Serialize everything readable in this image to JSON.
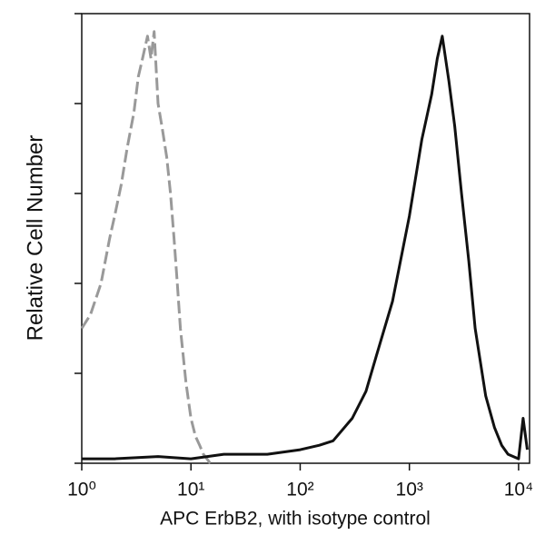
{
  "chart_data": {
    "type": "line",
    "x_label": "APC ErbB2, with isotype control",
    "y_label": "Relative Cell Number",
    "log_x": true,
    "xlim": [
      1,
      12600
    ],
    "xticks": [
      {
        "value": 1,
        "label": "10⁰"
      },
      {
        "value": 10,
        "label": "10¹"
      },
      {
        "value": 100,
        "label": "10²"
      },
      {
        "value": 1000,
        "label": "10³"
      },
      {
        "value": 10000,
        "label": "10⁴"
      }
    ],
    "ylim": [
      0,
      100
    ],
    "yticks": [
      0,
      20,
      40,
      60,
      80,
      100
    ],
    "series": [
      {
        "color": "#999999",
        "dashed": true,
        "x": [
          1,
          1.2,
          1.5,
          1.8,
          2,
          2.3,
          2.6,
          3,
          3.3,
          3.6,
          4,
          4.3,
          4.6,
          5,
          5.5,
          6,
          6.5,
          7,
          7.5,
          8,
          9,
          10,
          11,
          12,
          13,
          14,
          15
        ],
        "values": [
          30,
          33,
          40,
          50,
          55,
          62,
          70,
          78,
          86,
          90,
          95,
          90,
          96,
          80,
          74,
          68,
          60,
          50,
          40,
          30,
          18,
          10,
          6,
          4,
          2,
          1,
          0
        ]
      },
      {
        "color": "#111111",
        "dashed": false,
        "x": [
          1,
          2,
          5,
          10,
          20,
          50,
          100,
          150,
          200,
          300,
          400,
          500,
          700,
          1000,
          1300,
          1600,
          1800,
          2000,
          2300,
          2600,
          3000,
          3500,
          4000,
          5000,
          6000,
          7000,
          8000,
          10000,
          11000,
          12000
        ],
        "values": [
          1,
          1,
          1.5,
          1,
          2,
          2,
          3,
          4,
          5,
          10,
          16,
          24,
          36,
          55,
          72,
          82,
          90,
          95,
          85,
          75,
          60,
          45,
          30,
          15,
          8,
          4,
          2,
          1,
          10,
          3
        ]
      }
    ]
  }
}
